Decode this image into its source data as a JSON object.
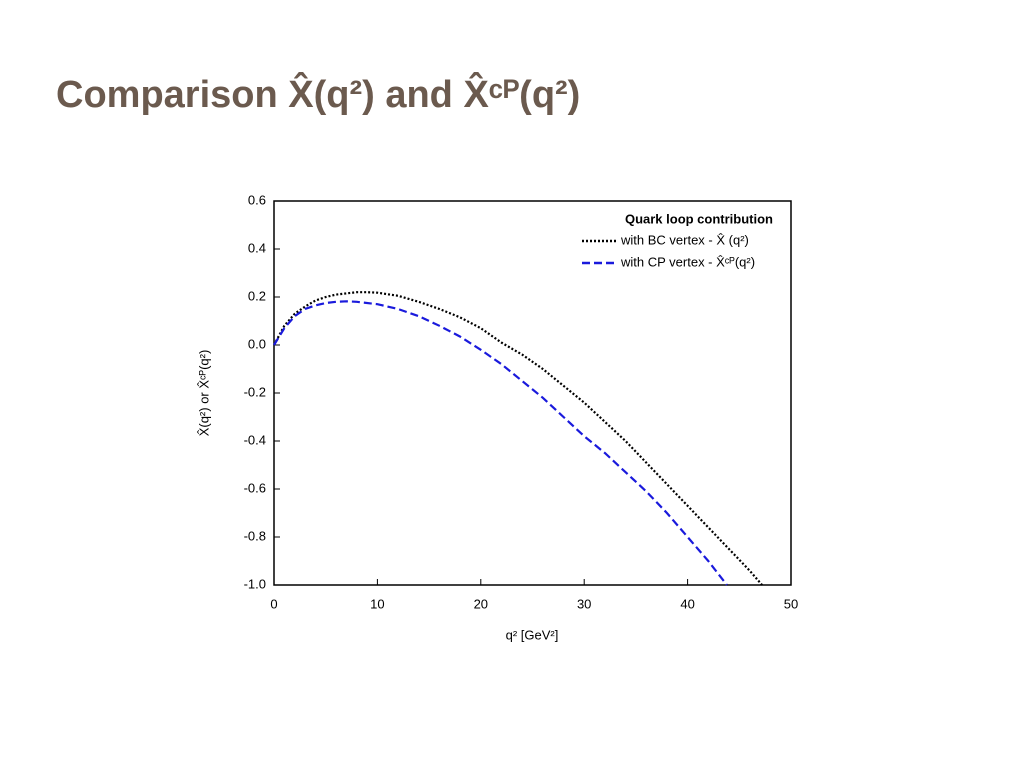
{
  "slide_title": "Comparison   X̂(q²) and X̂ᶜᴾ(q²)",
  "chart_data": {
    "type": "line",
    "x_label": "q² [GeV²]",
    "y_label": "X̂(q²) or X̂ᶜᴾ(q²)",
    "legend_title": "Quark loop contribution",
    "legend_position": "upper right",
    "xlim": [
      0,
      50
    ],
    "xticks": [
      0,
      10,
      20,
      30,
      40,
      50
    ],
    "ylim": [
      -1,
      0.6
    ],
    "yticks": [
      0.6,
      0.4,
      0.2,
      {
        "value": 0,
        "label": "0.0"
      },
      -0.2,
      -0.4,
      -0.6,
      -0.8,
      {
        "value": -1,
        "label": "-1.0"
      }
    ],
    "series": [
      {
        "name": "with BC vertex  - X̂ (q²)",
        "color": "#000000",
        "dash": "2,2",
        "x": [
          0,
          1,
          2,
          3,
          4,
          5,
          6,
          7,
          8,
          9,
          10,
          12,
          14,
          16,
          18,
          20,
          22,
          24,
          26,
          28,
          30,
          32,
          34,
          36,
          38,
          40,
          42,
          44,
          46,
          47.2
        ],
        "values": [
          0,
          0.08,
          0.13,
          0.16,
          0.185,
          0.2,
          0.21,
          0.215,
          0.22,
          0.22,
          0.218,
          0.205,
          0.18,
          0.15,
          0.115,
          0.07,
          0.01,
          -0.04,
          -0.1,
          -0.17,
          -0.24,
          -0.32,
          -0.4,
          -0.49,
          -0.58,
          -0.67,
          -0.76,
          -0.85,
          -0.94,
          -1
        ]
      },
      {
        "name": "with CP vertex  - X̂ᶜᴾ(q²)",
        "color": "#1a1adc",
        "dash": "8,4",
        "x": [
          0,
          1,
          2,
          3,
          4,
          5,
          6,
          7,
          8,
          10,
          12,
          14,
          16,
          18,
          20,
          22,
          24,
          26,
          28,
          30,
          32,
          34,
          36,
          38,
          40,
          42,
          43.8
        ],
        "values": [
          0,
          0.07,
          0.12,
          0.15,
          0.165,
          0.175,
          0.18,
          0.182,
          0.18,
          0.17,
          0.15,
          0.12,
          0.08,
          0.035,
          -0.02,
          -0.08,
          -0.15,
          -0.22,
          -0.3,
          -0.38,
          -0.45,
          -0.53,
          -0.61,
          -0.7,
          -0.8,
          -0.9,
          -1
        ]
      }
    ]
  }
}
